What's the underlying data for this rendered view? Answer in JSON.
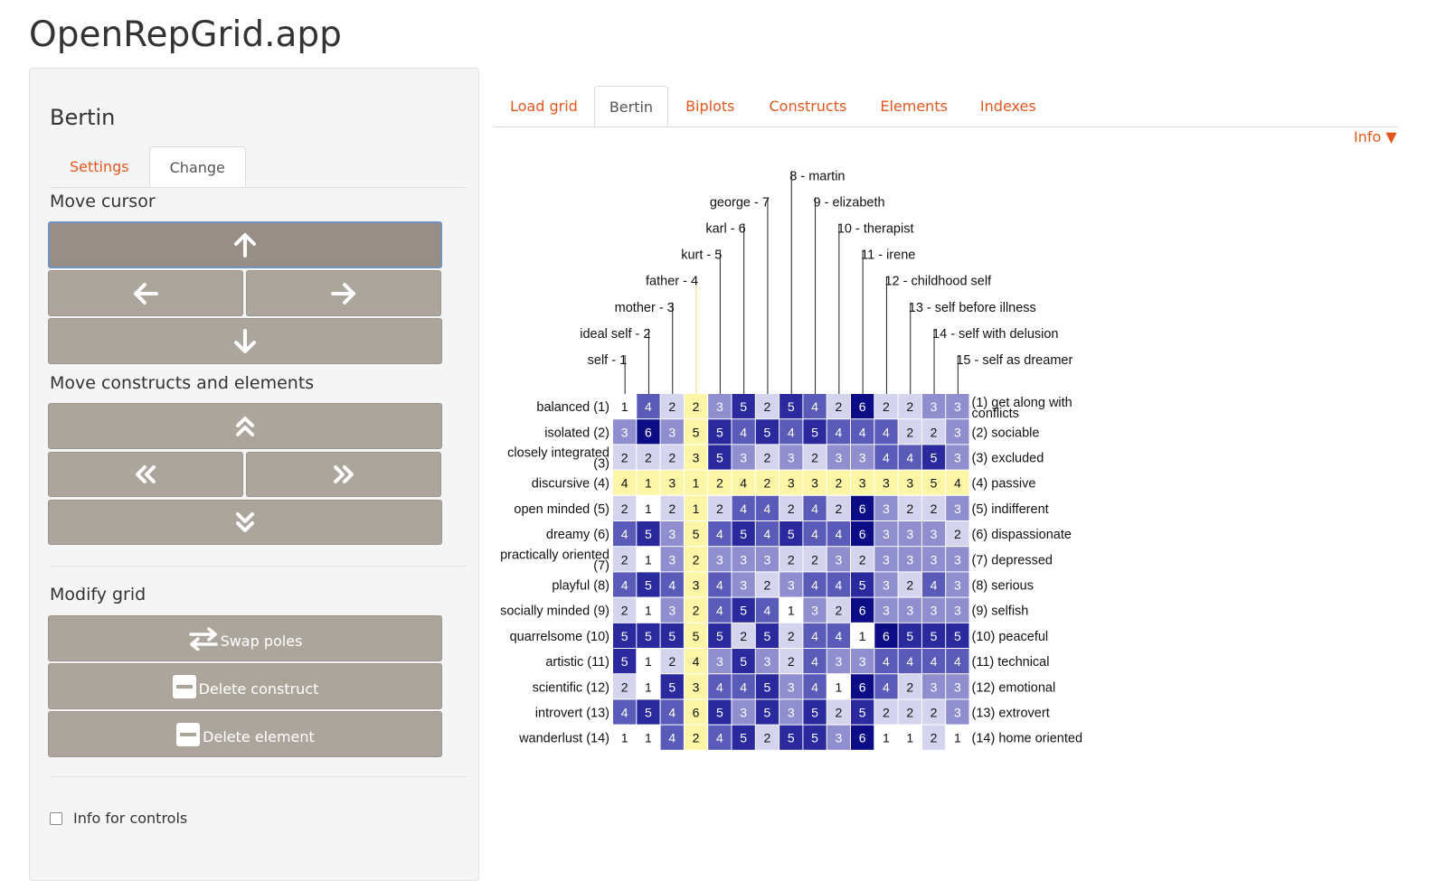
{
  "app": {
    "title": "OpenRepGrid.app"
  },
  "sidebar": {
    "title": "Bertin",
    "tabs": [
      {
        "label": "Settings"
      },
      {
        "label": "Change"
      }
    ],
    "move_cursor_label": "Move cursor",
    "move_items_label": "Move constructs and elements",
    "modify_grid_label": "Modify grid",
    "buttons": {
      "swap_poles": "Swap poles",
      "delete_construct": "Delete construct",
      "delete_element": "Delete element"
    },
    "info_controls_label": "Info for controls"
  },
  "main_tabs": [
    {
      "label": "Load grid"
    },
    {
      "label": "Bertin"
    },
    {
      "label": "Biplots"
    },
    {
      "label": "Constructs"
    },
    {
      "label": "Elements"
    },
    {
      "label": "Indexes"
    }
  ],
  "info_label": "Info ▼",
  "colors": {
    "accent": "#e2571e",
    "button": "#aca59c",
    "highlight": "#fdf6a7"
  },
  "grid": {
    "elements": [
      "self - 1",
      "ideal self - 2",
      "mother - 3",
      "father - 4",
      "kurt - 5",
      "karl - 6",
      "george - 7",
      "8 - martin",
      "9 - elizabeth",
      "10 - therapist",
      "11 - irene",
      "12 - childhood self",
      "13 - self before illness",
      "14 - self with delusion",
      "15 - self as dreamer"
    ],
    "left_poles": [
      [
        "balanced (1)"
      ],
      [
        "isolated (2)"
      ],
      [
        "closely integrated",
        "(3)"
      ],
      [
        "discursive (4)"
      ],
      [
        "open minded (5)"
      ],
      [
        "dreamy (6)"
      ],
      [
        "practically oriented",
        "(7)"
      ],
      [
        "playful (8)"
      ],
      [
        "socially minded (9)"
      ],
      [
        "quarrelsome (10)"
      ],
      [
        "artistic (11)"
      ],
      [
        "scientific (12)"
      ],
      [
        "introvert (13)"
      ],
      [
        "wanderlust (14)"
      ]
    ],
    "right_poles": [
      [
        "(1) get along with",
        "conflicts"
      ],
      [
        "(2) sociable"
      ],
      [
        "(3) excluded"
      ],
      [
        "(4) passive"
      ],
      [
        "(5) indifferent"
      ],
      [
        "(6) dispassionate"
      ],
      [
        "(7) depressed"
      ],
      [
        "(8) serious"
      ],
      [
        "(9) selfish"
      ],
      [
        "(10) peaceful"
      ],
      [
        "(11) technical"
      ],
      [
        "(12) emotional"
      ],
      [
        "(13) extrovert"
      ],
      [
        "(14) home oriented"
      ]
    ],
    "highlight_row": 4,
    "highlight_col": 4,
    "ratings": [
      [
        1,
        4,
        2,
        2,
        3,
        5,
        2,
        5,
        4,
        2,
        6,
        2,
        2,
        3,
        3
      ],
      [
        3,
        6,
        3,
        5,
        5,
        4,
        5,
        4,
        5,
        4,
        4,
        4,
        2,
        2,
        3
      ],
      [
        2,
        2,
        2,
        3,
        5,
        3,
        2,
        3,
        2,
        3,
        3,
        4,
        4,
        5,
        3
      ],
      [
        4,
        1,
        3,
        1,
        2,
        4,
        2,
        3,
        3,
        2,
        3,
        3,
        3,
        5,
        4
      ],
      [
        2,
        1,
        2,
        1,
        2,
        4,
        4,
        2,
        4,
        2,
        6,
        3,
        2,
        2,
        3
      ],
      [
        4,
        5,
        3,
        5,
        4,
        5,
        4,
        5,
        4,
        4,
        6,
        3,
        3,
        3,
        2
      ],
      [
        2,
        1,
        3,
        2,
        3,
        3,
        3,
        2,
        2,
        3,
        2,
        3,
        3,
        3,
        3
      ],
      [
        4,
        5,
        4,
        3,
        4,
        3,
        2,
        3,
        4,
        4,
        5,
        3,
        2,
        4,
        3
      ],
      [
        2,
        1,
        3,
        2,
        4,
        5,
        4,
        1,
        3,
        2,
        6,
        3,
        3,
        3,
        3
      ],
      [
        5,
        5,
        5,
        5,
        5,
        2,
        5,
        2,
        4,
        4,
        1,
        6,
        5,
        5,
        5
      ],
      [
        5,
        1,
        2,
        4,
        3,
        5,
        3,
        2,
        4,
        3,
        3,
        4,
        4,
        4,
        4
      ],
      [
        2,
        1,
        5,
        3,
        4,
        4,
        5,
        3,
        4,
        1,
        6,
        4,
        2,
        3,
        3
      ],
      [
        4,
        5,
        4,
        6,
        5,
        3,
        5,
        3,
        5,
        2,
        5,
        2,
        2,
        2,
        3
      ],
      [
        1,
        1,
        4,
        2,
        4,
        5,
        2,
        5,
        5,
        3,
        6,
        1,
        1,
        2,
        1
      ]
    ]
  }
}
